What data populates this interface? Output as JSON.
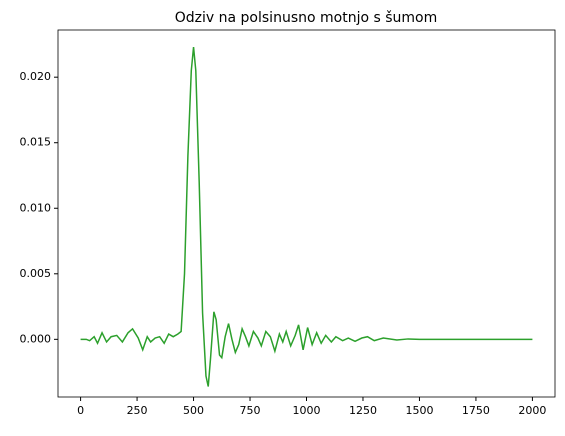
{
  "chart_data": {
    "type": "line",
    "title": "Odziv na polsinusno motnjo s šumom",
    "x": [
      0,
      25,
      40,
      60,
      75,
      95,
      115,
      135,
      160,
      185,
      210,
      230,
      255,
      275,
      295,
      310,
      330,
      350,
      370,
      390,
      410,
      430,
      445,
      460,
      475,
      490,
      500,
      510,
      525,
      540,
      555,
      565,
      575,
      590,
      600,
      615,
      625,
      640,
      655,
      670,
      685,
      700,
      715,
      730,
      745,
      765,
      785,
      800,
      820,
      840,
      860,
      880,
      895,
      910,
      930,
      950,
      965,
      985,
      1005,
      1025,
      1045,
      1065,
      1085,
      1110,
      1130,
      1160,
      1185,
      1215,
      1245,
      1270,
      1300,
      1340,
      1400,
      1450,
      1500,
      2000
    ],
    "series": [
      {
        "color": "#2ca02c",
        "values": [
          0,
          0,
          -0.0001,
          0.0002,
          -0.0003,
          0.0005,
          -0.0002,
          0.0002,
          0.0003,
          -0.0002,
          0.0005,
          0.0008,
          0.0001,
          -0.0008,
          0.0002,
          -0.0002,
          0.0001,
          0.0002,
          -0.0003,
          0.0004,
          0.0002,
          0.0004,
          0.0006,
          0.005,
          0.014,
          0.0205,
          0.0223,
          0.0205,
          0.012,
          0.002,
          -0.0028,
          -0.0036,
          -0.0015,
          0.0021,
          0.0015,
          -0.0012,
          -0.0014,
          0.0002,
          0.0012,
          0,
          -0.001,
          -0.0004,
          0.0008,
          0.0002,
          -0.0005,
          0.0006,
          0.0001,
          -0.0005,
          0.0006,
          0.0002,
          -0.0009,
          0.0004,
          -0.0002,
          0.0006,
          -0.0005,
          0.0003,
          0.0011,
          -0.0008,
          0.0009,
          -0.0004,
          0.0005,
          -0.0003,
          0.0003,
          -0.0002,
          0.0002,
          -0.0001,
          0.0001,
          -0.00015,
          0.0001,
          0.0002,
          -0.0001,
          0.0001,
          -5e-05,
          3e-05,
          0,
          0
        ]
      }
    ],
    "xlim": [
      -100,
      2100
    ],
    "xticks": [
      0,
      250,
      500,
      750,
      1000,
      1250,
      1500,
      1750,
      2000
    ],
    "ylim": [
      -0.0044,
      0.0236
    ],
    "yticks": [
      {
        "value": 0,
        "label": "0.000"
      },
      {
        "value": 0.005,
        "label": "0.005"
      },
      {
        "value": 0.01,
        "label": "0.010"
      },
      {
        "value": 0.015,
        "label": "0.015"
      },
      {
        "value": 0.02,
        "label": "0.020"
      }
    ]
  }
}
